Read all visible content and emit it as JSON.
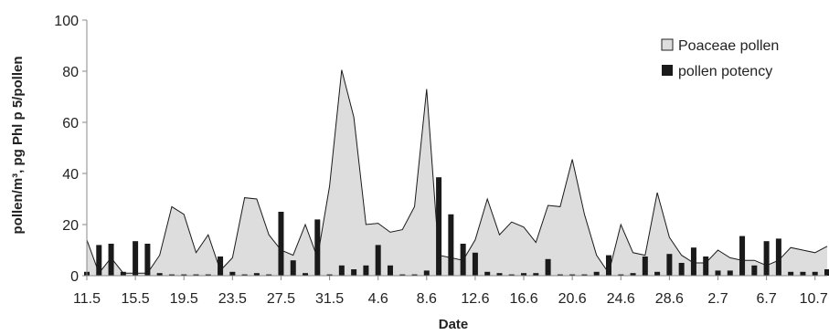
{
  "chart_data": {
    "type": "area",
    "xlabel": "Date",
    "ylabel": "pollen/m³, pg Phl p 5/pollen",
    "ylim": [
      0,
      100
    ],
    "yticks": [
      0,
      20,
      40,
      60,
      80,
      100
    ],
    "xtick_labels": [
      "11.5",
      "15.5",
      "19.5",
      "23.5",
      "27.5",
      "31.5",
      "4.6",
      "8.6",
      "12.6",
      "16.6",
      "20.6",
      "24.6",
      "28.6",
      "2.7",
      "6.7",
      "10.7"
    ],
    "x": [
      "11.5",
      "12.5",
      "13.5",
      "14.5",
      "15.5",
      "16.5",
      "17.5",
      "18.5",
      "19.5",
      "20.5",
      "21.5",
      "22.5",
      "23.5",
      "24.5",
      "25.5",
      "26.5",
      "27.5",
      "28.5",
      "29.5",
      "30.5",
      "31.5",
      "1.6",
      "2.6",
      "3.6",
      "4.6",
      "5.6",
      "6.6",
      "7.6",
      "8.6",
      "9.6",
      "10.6",
      "11.6",
      "12.6",
      "13.6",
      "14.6",
      "15.6",
      "16.6",
      "17.6",
      "18.6",
      "19.6",
      "20.6",
      "21.6",
      "22.6",
      "23.6",
      "24.6",
      "25.6",
      "26.6",
      "27.6",
      "28.6",
      "29.6",
      "30.6",
      "1.7",
      "2.7",
      "3.7",
      "4.7",
      "5.7",
      "6.7",
      "7.7",
      "8.7",
      "9.7",
      "10.7",
      "11.7"
    ],
    "series": [
      {
        "name": "Poaceae pollen",
        "type": "area",
        "color": "#dddddd",
        "values": [
          14,
          1,
          7,
          1,
          1,
          1,
          8,
          27,
          24,
          9,
          16,
          2,
          7,
          30.5,
          30,
          16,
          10,
          8,
          20,
          7,
          35,
          80.5,
          62,
          20,
          20.5,
          17,
          18,
          27,
          73,
          8,
          7,
          6,
          14,
          30,
          16,
          21,
          19,
          13,
          27.5,
          27,
          45.5,
          24,
          8,
          1,
          20,
          9,
          8,
          32.5,
          15,
          8,
          5,
          5,
          10,
          7,
          6,
          6,
          4,
          6,
          11,
          10,
          9,
          11.5
        ]
      },
      {
        "name": "pollen potency",
        "type": "bar",
        "color": "#1a1a1a",
        "values": [
          1.5,
          12,
          12.5,
          1.5,
          13.5,
          12.5,
          1,
          0.5,
          0.5,
          0.5,
          0.5,
          7.5,
          1.5,
          0.5,
          1,
          0.5,
          25,
          6,
          1,
          22,
          0.5,
          4,
          2.5,
          4,
          12,
          4,
          0.5,
          0.5,
          2,
          38.5,
          24,
          12.5,
          9,
          1.5,
          1,
          0.5,
          1,
          1,
          6.5,
          0.5,
          0.5,
          0.5,
          1.5,
          8,
          0.5,
          1,
          7.5,
          1.5,
          8.5,
          5,
          11,
          7.5,
          2,
          2,
          15.5,
          4,
          13.5,
          14.5,
          1.5,
          1.5,
          1.5,
          2.5
        ]
      }
    ],
    "grid": false,
    "legend": "top-right"
  }
}
